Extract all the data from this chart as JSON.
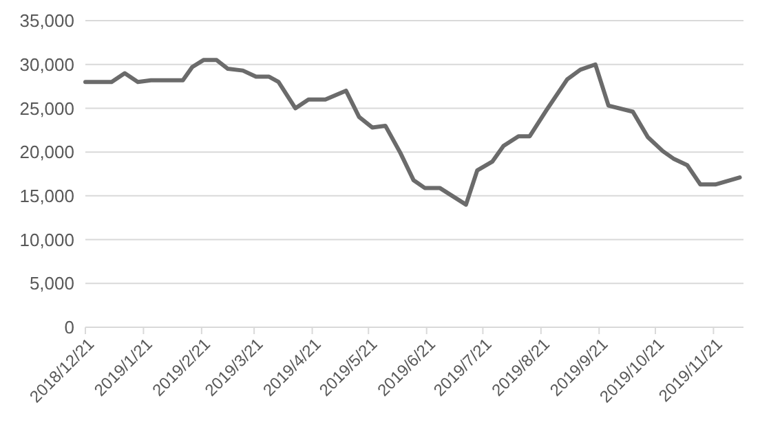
{
  "chart_data": {
    "type": "line",
    "x": [
      "2018-12-21",
      "2019-01-04",
      "2019-01-11",
      "2019-01-18",
      "2019-01-25",
      "2019-02-11",
      "2019-02-16",
      "2019-02-22",
      "2019-03-01",
      "2019-03-07",
      "2019-03-15",
      "2019-03-22",
      "2019-03-29",
      "2019-04-03",
      "2019-04-12",
      "2019-04-19",
      "2019-04-28",
      "2019-05-09",
      "2019-05-16",
      "2019-05-23",
      "2019-05-30",
      "2019-06-07",
      "2019-06-14",
      "2019-06-20",
      "2019-06-28",
      "2019-07-12",
      "2019-07-18",
      "2019-07-26",
      "2019-08-01",
      "2019-08-09",
      "2019-08-15",
      "2019-08-24",
      "2019-09-04",
      "2019-09-11",
      "2019-09-19",
      "2019-09-26",
      "2019-10-09",
      "2019-10-17",
      "2019-10-25",
      "2019-10-31",
      "2019-11-07",
      "2019-11-14",
      "2019-11-22",
      "2019-12-05"
    ],
    "series": [
      {
        "color": "#6b6b6b",
        "values": [
          28000,
          28000,
          29000,
          28000,
          28200,
          28200,
          29700,
          30500,
          30500,
          29500,
          29300,
          28600,
          28600,
          28000,
          25000,
          26000,
          26000,
          27000,
          24000,
          22800,
          23000,
          19900,
          16800,
          15900,
          15900,
          14000,
          17900,
          18900,
          20700,
          21800,
          21800,
          24800,
          28300,
          29400,
          30000,
          25300,
          24600,
          21700,
          20100,
          19200,
          18500,
          16300,
          16300,
          17100
        ]
      }
    ],
    "xlim": [
      "2018-12-21",
      "2019-12-07"
    ],
    "xticks": [
      {
        "value": "2018-12-21",
        "label": "2018/12/21"
      },
      {
        "value": "2019-01-21",
        "label": "2019/1/21"
      },
      {
        "value": "2019-02-21",
        "label": "2019/2/21"
      },
      {
        "value": "2019-03-21",
        "label": "2019/3/21"
      },
      {
        "value": "2019-04-21",
        "label": "2019/4/21"
      },
      {
        "value": "2019-05-21",
        "label": "2019/5/21"
      },
      {
        "value": "2019-06-21",
        "label": "2019/6/21"
      },
      {
        "value": "2019-07-21",
        "label": "2019/7/21"
      },
      {
        "value": "2019-08-21",
        "label": "2019/8/21"
      },
      {
        "value": "2019-09-21",
        "label": "2019/9/21"
      },
      {
        "value": "2019-10-21",
        "label": "2019/10/21"
      },
      {
        "value": "2019-11-21",
        "label": "2019/11/21"
      }
    ],
    "ylim": [
      0,
      35000
    ],
    "yticks": [
      {
        "value": 0,
        "label": "0"
      },
      {
        "value": 5000,
        "label": "5,000"
      },
      {
        "value": 10000,
        "label": "10,000"
      },
      {
        "value": 15000,
        "label": "15,000"
      },
      {
        "value": 20000,
        "label": "20,000"
      },
      {
        "value": 25000,
        "label": "25,000"
      },
      {
        "value": 30000,
        "label": "30,000"
      },
      {
        "value": 35000,
        "label": "35,000"
      }
    ],
    "grid": "y",
    "marker": "none",
    "line_style": "solid"
  }
}
